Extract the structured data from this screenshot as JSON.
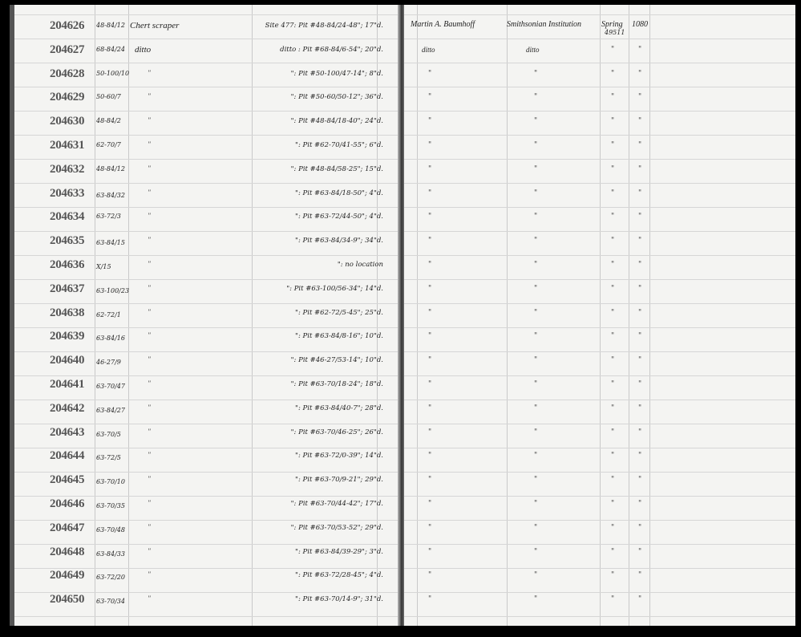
{
  "left_rows": [
    {
      "catalog": "204626",
      "locality": "48-84/12",
      "name": "Chert scraper",
      "description": "Site 477: Pit #48-84/24-48\"; 17\"d."
    },
    {
      "catalog": "204627",
      "locality": "68-84/24",
      "name": "ditto",
      "description": "ditto : Pit #68-84/6-54\"; 20\"d."
    },
    {
      "catalog": "204628",
      "locality": "50-100/10",
      "name": "\"",
      "description": "\": Pit #50-100/47-14\"; 8\"d."
    },
    {
      "catalog": "204629",
      "locality": "50-60/7",
      "name": "\"",
      "description": "\": Pit #50-60/50-12\"; 36\"d."
    },
    {
      "catalog": "204630",
      "locality": "48-84/2",
      "name": "\"",
      "description": "\": Pit #48-84/18-40\"; 24\"d."
    },
    {
      "catalog": "204631",
      "locality": "62-70/7",
      "name": "\"",
      "description": "\": Pit #62-70/41-55\"; 6\"d."
    },
    {
      "catalog": "204632",
      "locality": "48-84/12",
      "name": "\"",
      "description": "\": Pit #48-84/58-25\"; 15\"d."
    },
    {
      "catalog": "204633",
      "locality": "63-84/32",
      "name": "\"",
      "description": "\": Pit #63-84/18-50\"; 4\"d."
    },
    {
      "catalog": "204634",
      "locality": "63-72/3",
      "name": "\"",
      "description": "\": Pit #63-72/44-50\"; 4\"d."
    },
    {
      "catalog": "204635",
      "locality": "63-84/15",
      "name": "\"",
      "description": "\": Pit #63-84/34-9\"; 34\"d."
    },
    {
      "catalog": "204636",
      "locality": "X/15",
      "name": "\"",
      "description": "\": no location"
    },
    {
      "catalog": "204637",
      "locality": "63-100/23",
      "name": "\"",
      "description": "\": Pit #63-100/56-34\"; 14\"d."
    },
    {
      "catalog": "204638",
      "locality": "62-72/1",
      "name": "\"",
      "description": "\": Pit #62-72/5-45\"; 25\"d."
    },
    {
      "catalog": "204639",
      "locality": "63-84/16",
      "name": "\"",
      "description": "\": Pit #63-84/8-16\"; 10\"d."
    },
    {
      "catalog": "204640",
      "locality": "46-27/9",
      "name": "\"",
      "description": "\": Pit #46-27/53-14\"; 10\"d."
    },
    {
      "catalog": "204641",
      "locality": "63-70/47",
      "name": "\"",
      "description": "\": Pit #63-70/18-24\"; 18\"d."
    },
    {
      "catalog": "204642",
      "locality": "63-84/27",
      "name": "\"",
      "description": "\": Pit #63-84/40-7\"; 28\"d."
    },
    {
      "catalog": "204643",
      "locality": "63-70/5",
      "name": "\"",
      "description": "\": Pit #63-70/46-25\"; 26\"d."
    },
    {
      "catalog": "204644",
      "locality": "63-72/5",
      "name": "\"",
      "description": "\": Pit #63-72/0-39\"; 14\"d."
    },
    {
      "catalog": "204645",
      "locality": "63-70/10",
      "name": "\"",
      "description": "\": Pit #63-70/9-21\"; 29\"d."
    },
    {
      "catalog": "204646",
      "locality": "63-70/35",
      "name": "\"",
      "description": "\": Pit #63-70/44-42\"; 17\"d."
    },
    {
      "catalog": "204647",
      "locality": "63-70/48",
      "name": "\"",
      "description": "\": Pit #63-70/53-52\"; 29\"d."
    },
    {
      "catalog": "204648",
      "locality": "63-84/33",
      "name": "\"",
      "description": "\": Pit #63-84/39-29\"; 3\"d."
    },
    {
      "catalog": "204649",
      "locality": "63-72/20",
      "name": "\"",
      "description": "\": Pit #63-72/28-45\"; 4\"d."
    },
    {
      "catalog": "204650",
      "locality": "63-70/34",
      "name": "\"",
      "description": "\": Pit #63-70/14-9\"; 31\"d."
    }
  ],
  "right_first": {
    "collector": "Martin A. Baumhoff",
    "donor": "Smithsonian Institution",
    "how": "Spring",
    "how_sub": "49511",
    "number": "1080"
  },
  "right_second": {
    "collector": "ditto",
    "donor": "ditto",
    "how": "\"",
    "number": "\""
  },
  "ditto_mark": "\""
}
